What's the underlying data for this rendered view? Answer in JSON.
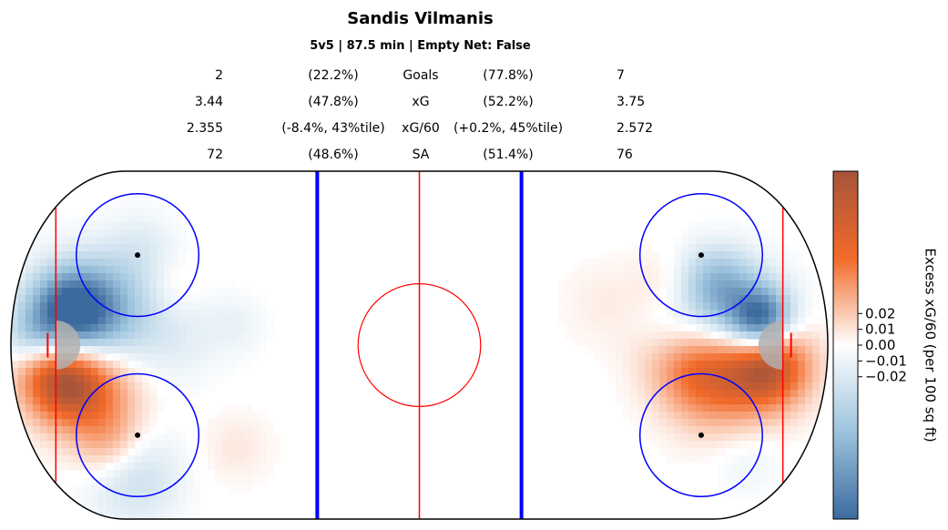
{
  "chart_data": {
    "type": "heatmap",
    "title": "Sandis Vilmanis",
    "subtitle": "5v5 | 87.5 min | Empty Net: False",
    "stats_table": [
      {
        "left_value": "2",
        "left_pct": "(22.2%)",
        "metric": "Goals",
        "right_pct": "(77.8%)",
        "right_value": "7"
      },
      {
        "left_value": "3.44",
        "left_pct": "(47.8%)",
        "metric": "xG",
        "right_pct": "(52.2%)",
        "right_value": "3.75"
      },
      {
        "left_value": "2.355",
        "left_pct": "(-8.4%, 43%tile)",
        "metric": "xG/60",
        "right_pct": "(+0.2%, 45%tile)",
        "right_value": "2.572"
      },
      {
        "left_value": "72",
        "left_pct": "(48.6%)",
        "metric": "SA",
        "right_pct": "(51.4%)",
        "right_value": "76"
      }
    ],
    "colorbar": {
      "label": "Excess xG/60 (per 100 sq ft)",
      "ticks": [
        "0.02",
        "0.01",
        "0.00",
        "−0.01",
        "−0.02"
      ],
      "tick_values": [
        0.02,
        0.01,
        0.0,
        -0.01,
        -0.02
      ],
      "range": [
        -0.11,
        0.11
      ],
      "colors": [
        "#3b6a9e",
        "#ffffff",
        "#f26a2a",
        "#a6543a"
      ]
    },
    "rink": {
      "boards_color": "#000000",
      "blue_line_color": "#0000ff",
      "red_line_color": "#ff0000",
      "crease_color": "#b0b0b0"
    },
    "hotspots": [
      {
        "x": -86,
        "y": 8,
        "v": -0.1,
        "s": 7
      },
      {
        "x": -78,
        "y": 9,
        "v": -0.06,
        "s": 9
      },
      {
        "x": -88,
        "y": -8,
        "v": 0.09,
        "s": 7
      },
      {
        "x": -80,
        "y": -12,
        "v": 0.05,
        "s": 8
      },
      {
        "x": -76,
        "y": -24,
        "v": 0.03,
        "s": 6
      },
      {
        "x": -70,
        "y": -32,
        "v": -0.03,
        "s": 8
      },
      {
        "x": -95,
        "y": 2,
        "v": -0.03,
        "s": 5
      },
      {
        "x": -60,
        "y": 2,
        "v": -0.015,
        "s": 8
      },
      {
        "x": -68,
        "y": 24,
        "v": -0.015,
        "s": 6
      },
      {
        "x": -60,
        "y": 14,
        "v": 0.01,
        "s": 5
      },
      {
        "x": -45,
        "y": -25,
        "v": 0.01,
        "s": 6
      },
      {
        "x": -45,
        "y": 5,
        "v": -0.01,
        "s": 5
      },
      {
        "x": 78,
        "y": 8,
        "v": -0.06,
        "s": 8
      },
      {
        "x": 84,
        "y": 6,
        "v": -0.09,
        "s": 5
      },
      {
        "x": 72,
        "y": 16,
        "v": -0.04,
        "s": 6
      },
      {
        "x": 86,
        "y": -5,
        "v": 0.09,
        "s": 7
      },
      {
        "x": 74,
        "y": -8,
        "v": 0.06,
        "s": 9
      },
      {
        "x": 66,
        "y": -6,
        "v": 0.03,
        "s": 7
      },
      {
        "x": 60,
        "y": 15,
        "v": 0.01,
        "s": 6
      },
      {
        "x": 62,
        "y": 4,
        "v": -0.01,
        "s": 6
      },
      {
        "x": 80,
        "y": -28,
        "v": -0.01,
        "s": 6
      },
      {
        "x": 45,
        "y": 10,
        "v": 0.008,
        "s": 7
      },
      {
        "x": 55,
        "y": -2,
        "v": 0.005,
        "s": 5
      }
    ]
  }
}
